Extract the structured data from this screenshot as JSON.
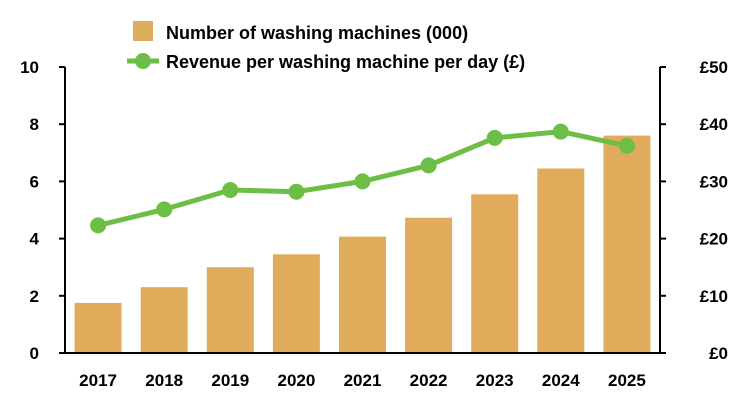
{
  "colors": {
    "bar": "#E0AC5B",
    "line": "#6CBE45",
    "axis": "#000000"
  },
  "legend": {
    "bars_label": "Number of washing machines (000)",
    "line_label": "Revenue per washing machine per day (£)"
  },
  "chart_data": {
    "type": "bar",
    "categories": [
      "2017",
      "2018",
      "2019",
      "2020",
      "2021",
      "2022",
      "2023",
      "2024",
      "2025"
    ],
    "series": [
      {
        "name": "Number of washing machines (000)",
        "type": "bar",
        "axis": "left",
        "values": [
          1.75,
          2.3,
          3.0,
          3.45,
          4.07,
          4.73,
          5.55,
          6.45,
          7.6
        ]
      },
      {
        "name": "Revenue per washing machine per day (£)",
        "type": "line",
        "axis": "right",
        "values": [
          22.3,
          25.1,
          28.5,
          28.2,
          30.0,
          32.8,
          37.6,
          38.7,
          36.2
        ]
      }
    ],
    "y_left": {
      "ylim": [
        0,
        10
      ],
      "ticks": [
        "0",
        "2",
        "4",
        "6",
        "8",
        "10"
      ]
    },
    "y_right": {
      "ylim": [
        0,
        50
      ],
      "ticks": [
        "£0",
        "£10",
        "£20",
        "£30",
        "£40",
        "£50"
      ]
    },
    "grid": false,
    "legend_position": "top"
  }
}
